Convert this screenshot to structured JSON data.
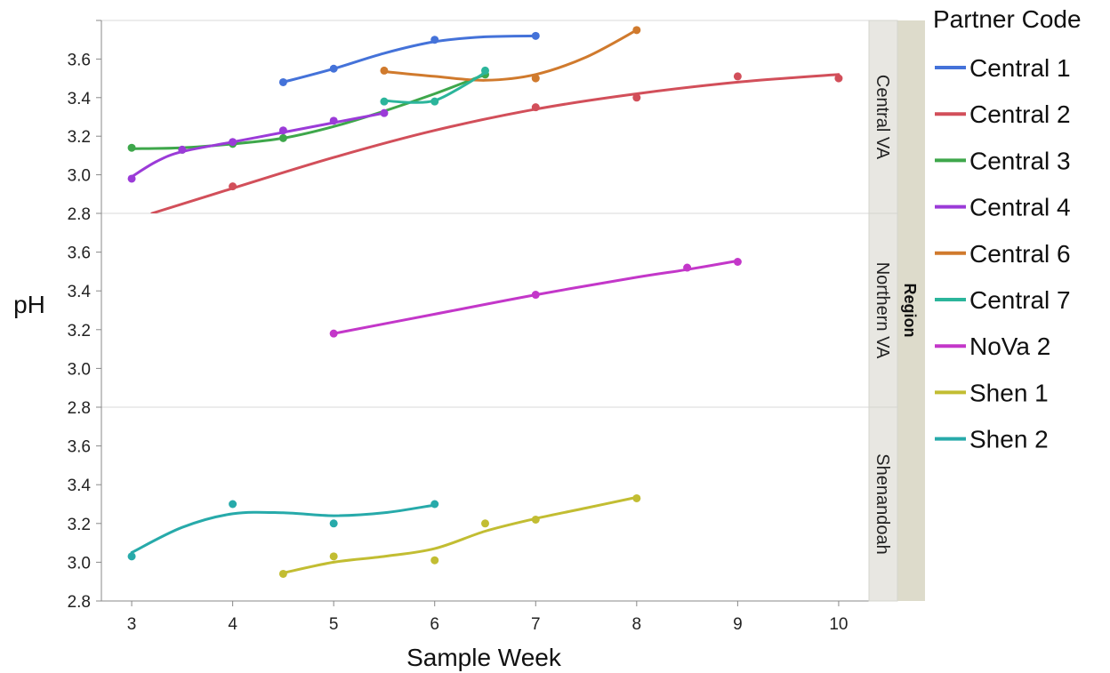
{
  "chart_data": {
    "type": "line",
    "xlabel": "Sample Week",
    "ylabel": "pH",
    "xlim": [
      2.7,
      10.3
    ],
    "xticks": [
      3,
      4,
      5,
      6,
      7,
      8,
      9,
      10
    ],
    "ylim": [
      2.8,
      3.8
    ],
    "yticks": [
      2.8,
      3.0,
      3.2,
      3.4,
      3.6
    ],
    "facet_title": "Region",
    "legend_title": "Partner Code",
    "legend_position": "right",
    "grid": false,
    "facets": [
      {
        "label": "Central VA",
        "series": [
          "Central 1",
          "Central 2",
          "Central 3",
          "Central 4",
          "Central 6",
          "Central 7"
        ]
      },
      {
        "label": "Northern VA",
        "series": [
          "NoVa 2"
        ]
      },
      {
        "label": "Shenandoah",
        "series": [
          "Shen 1",
          "Shen 2"
        ]
      }
    ],
    "series": [
      {
        "name": "Central 1",
        "color": "#4472d9",
        "points": [
          [
            4.5,
            3.48
          ],
          [
            5,
            3.55
          ],
          [
            6,
            3.7
          ],
          [
            7,
            3.72
          ]
        ],
        "curve": [
          [
            4.5,
            3.48
          ],
          [
            5,
            3.55
          ],
          [
            5.5,
            3.63
          ],
          [
            6,
            3.69
          ],
          [
            6.5,
            3.715
          ],
          [
            7,
            3.72
          ]
        ]
      },
      {
        "name": "Central 2",
        "color": "#d24f5a",
        "points": [
          [
            4,
            2.94
          ],
          [
            7,
            3.35
          ],
          [
            8,
            3.4
          ],
          [
            9,
            3.51
          ],
          [
            10,
            3.5
          ]
        ],
        "curve": [
          [
            3.2,
            2.8
          ],
          [
            4,
            2.93
          ],
          [
            5,
            3.09
          ],
          [
            6,
            3.23
          ],
          [
            7,
            3.34
          ],
          [
            8,
            3.42
          ],
          [
            9,
            3.48
          ],
          [
            10,
            3.52
          ]
        ]
      },
      {
        "name": "Central 3",
        "color": "#3ea74b",
        "points": [
          [
            3,
            3.14
          ],
          [
            3.5,
            3.13
          ],
          [
            4,
            3.16
          ],
          [
            4.5,
            3.19
          ],
          [
            6.5,
            3.52
          ]
        ],
        "curve": [
          [
            3,
            3.135
          ],
          [
            3.5,
            3.14
          ],
          [
            4,
            3.16
          ],
          [
            4.5,
            3.19
          ],
          [
            5,
            3.25
          ],
          [
            5.5,
            3.33
          ],
          [
            6,
            3.42
          ],
          [
            6.5,
            3.52
          ]
        ]
      },
      {
        "name": "Central 4",
        "color": "#9b3bd8",
        "points": [
          [
            3,
            2.98
          ],
          [
            3.5,
            3.13
          ],
          [
            4,
            3.17
          ],
          [
            4.5,
            3.23
          ],
          [
            5,
            3.28
          ],
          [
            5.5,
            3.32
          ]
        ],
        "curve": [
          [
            3,
            2.99
          ],
          [
            3.25,
            3.07
          ],
          [
            3.5,
            3.12
          ],
          [
            4,
            3.17
          ],
          [
            4.5,
            3.22
          ],
          [
            5,
            3.27
          ],
          [
            5.5,
            3.32
          ]
        ]
      },
      {
        "name": "Central 6",
        "color": "#d07a2d",
        "points": [
          [
            5.5,
            3.54
          ],
          [
            7,
            3.5
          ],
          [
            8,
            3.75
          ]
        ],
        "curve": [
          [
            5.5,
            3.535
          ],
          [
            6,
            3.51
          ],
          [
            6.5,
            3.49
          ],
          [
            7,
            3.52
          ],
          [
            7.5,
            3.61
          ],
          [
            8,
            3.75
          ]
        ]
      },
      {
        "name": "Central 7",
        "color": "#2bb59b",
        "points": [
          [
            5.5,
            3.38
          ],
          [
            6,
            3.38
          ],
          [
            6.5,
            3.54
          ]
        ],
        "curve": [
          [
            5.5,
            3.385
          ],
          [
            5.75,
            3.375
          ],
          [
            6,
            3.385
          ],
          [
            6.25,
            3.45
          ],
          [
            6.5,
            3.53
          ]
        ]
      },
      {
        "name": "NoVa 2",
        "color": "#c337c9",
        "points": [
          [
            5,
            3.18
          ],
          [
            7,
            3.38
          ],
          [
            8.5,
            3.52
          ],
          [
            9,
            3.55
          ]
        ],
        "curve": [
          [
            5,
            3.18
          ],
          [
            6,
            3.28
          ],
          [
            7,
            3.38
          ],
          [
            8,
            3.47
          ],
          [
            8.5,
            3.51
          ],
          [
            9,
            3.555
          ]
        ]
      },
      {
        "name": "Shen 1",
        "color": "#c2bd32",
        "points": [
          [
            4.5,
            2.94
          ],
          [
            5,
            3.03
          ],
          [
            6,
            3.01
          ],
          [
            6.5,
            3.2
          ],
          [
            7,
            3.22
          ],
          [
            8,
            3.33
          ]
        ],
        "curve": [
          [
            4.5,
            2.945
          ],
          [
            5,
            3.0
          ],
          [
            5.5,
            3.03
          ],
          [
            6,
            3.07
          ],
          [
            6.5,
            3.16
          ],
          [
            7,
            3.225
          ],
          [
            7.5,
            3.28
          ],
          [
            8,
            3.335
          ]
        ]
      },
      {
        "name": "Shen 2",
        "color": "#27aaaa",
        "points": [
          [
            3,
            3.03
          ],
          [
            4,
            3.3
          ],
          [
            5,
            3.2
          ],
          [
            6,
            3.3
          ]
        ],
        "curve": [
          [
            3,
            3.05
          ],
          [
            3.5,
            3.18
          ],
          [
            4,
            3.25
          ],
          [
            4.5,
            3.255
          ],
          [
            5,
            3.24
          ],
          [
            5.5,
            3.255
          ],
          [
            6,
            3.295
          ]
        ]
      }
    ]
  }
}
